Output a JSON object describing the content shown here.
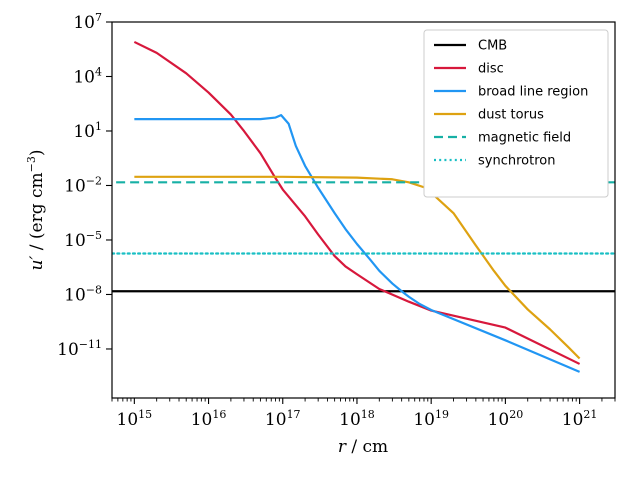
{
  "chart_data": {
    "type": "line",
    "xscale": "log",
    "yscale": "log",
    "xlim": [
      500000000000000.0,
      3e+21
    ],
    "ylim": [
      2e-14,
      10000000.0
    ],
    "xlabel": {
      "sym": "r",
      "unit": "cm"
    },
    "ylabel": {
      "sym": "u′",
      "unit": "(erg cm",
      "exp": "−3",
      "close": ")"
    },
    "x_ticks": [
      {
        "value": 1000000000000000.0,
        "base": "10",
        "exp": "15"
      },
      {
        "value": 1e+16,
        "base": "10",
        "exp": "16"
      },
      {
        "value": 1e+17,
        "base": "10",
        "exp": "17"
      },
      {
        "value": 1e+18,
        "base": "10",
        "exp": "18"
      },
      {
        "value": 1e+19,
        "base": "10",
        "exp": "19"
      },
      {
        "value": 1e+20,
        "base": "10",
        "exp": "20"
      },
      {
        "value": 1e+21,
        "base": "10",
        "exp": "21"
      }
    ],
    "y_ticks": [
      {
        "value": 1e-11,
        "base": "10",
        "exp": "−11"
      },
      {
        "value": 1e-08,
        "base": "10",
        "exp": "−8"
      },
      {
        "value": 1e-05,
        "base": "10",
        "exp": "−5"
      },
      {
        "value": 0.01,
        "base": "10",
        "exp": "−2"
      },
      {
        "value": 10,
        "base": "10",
        "exp": "1"
      },
      {
        "value": 10000.0,
        "base": "10",
        "exp": "4"
      },
      {
        "value": 10000000.0,
        "base": "10",
        "exp": "7"
      }
    ],
    "series": [
      {
        "name": "CMB",
        "color": "#000000",
        "style": "solid",
        "x": [
          100000000000000.0,
          1e+22
        ],
        "y": [
          1.5e-08,
          1.5e-08
        ]
      },
      {
        "name": "disc",
        "color": "#d7183c",
        "style": "solid",
        "x": [
          1000000000000000.0,
          2000000000000000.0,
          5000000000000000.0,
          1e+16,
          2e+16,
          3e+16,
          5e+16,
          8e+16,
          1e+17,
          2e+17,
          3e+17,
          5e+17,
          7e+17,
          1e+18,
          2e+18,
          5e+18,
          1e+19,
          1e+20,
          1e+21
        ],
        "y": [
          800000.0,
          200000.0,
          15000.0,
          1300.0,
          80,
          10,
          0.6,
          0.025,
          0.006,
          0.0002,
          2e-05,
          1.3e-06,
          3.5e-07,
          1.3e-07,
          2e-08,
          4e-09,
          1.3e-09,
          1.5e-10,
          1.5e-12
        ]
      },
      {
        "name": "broad line region",
        "color": "#2196f3",
        "style": "solid",
        "x": [
          1000000000000000.0,
          1e+16,
          5e+16,
          8e+16,
          9.5e+16,
          1.2e+17,
          1.5e+17,
          2e+17,
          3e+17,
          5e+17,
          7e+17,
          1e+18,
          1.5e+18,
          2e+18,
          3e+18,
          4e+18,
          5e+18,
          7e+18,
          1e+19,
          1e+20,
          1e+21
        ],
        "y": [
          45,
          45,
          45,
          55,
          75,
          25,
          1.5,
          0.12,
          0.0075,
          0.0003,
          4e-05,
          6e-06,
          8.5e-07,
          2e-07,
          4e-08,
          1.5e-08,
          7.5e-09,
          3e-09,
          1.4e-09,
          3e-11,
          5.5e-13
        ]
      },
      {
        "name": "dust torus",
        "color": "#dea211",
        "style": "solid",
        "x": [
          1000000000000000.0,
          1e+16,
          1e+17,
          1e+18,
          3e+18,
          5e+18,
          8e+18,
          1e+19,
          2e+19,
          4e+19,
          7e+19,
          1e+20,
          2e+20,
          4e+20,
          7e+20,
          1e+21
        ],
        "y": [
          0.03,
          0.03,
          0.03,
          0.027,
          0.022,
          0.015,
          0.008,
          0.004,
          0.0003,
          5e-06,
          2e-07,
          3e-08,
          1.5e-09,
          1.2e-10,
          1.3e-11,
          3e-12
        ]
      },
      {
        "name": "magnetic field",
        "color": "#17b0a5",
        "style": "dashed",
        "x": [
          100000000000000.0,
          1e+22
        ],
        "y": [
          0.015,
          0.015
        ]
      },
      {
        "name": "synchrotron",
        "color": "#19bfc4",
        "style": "dotted",
        "x": [
          100000000000000.0,
          1e+22
        ],
        "y": [
          1.8e-06,
          1.8e-06
        ]
      }
    ],
    "legend_position": "top-right"
  }
}
